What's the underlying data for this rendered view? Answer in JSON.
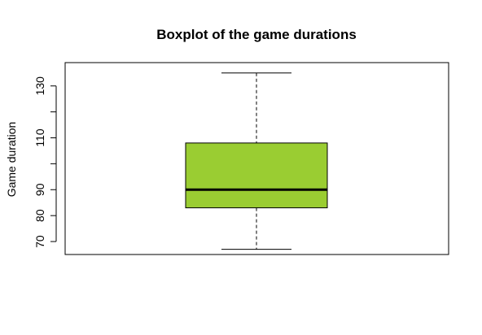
{
  "chart_data": {
    "type": "boxplot",
    "title": "Boxplot of the game durations",
    "xlabel": "",
    "ylabel": "Game duration",
    "ylim": [
      65,
      139
    ],
    "yticks": [
      {
        "value": 70,
        "label": "70"
      },
      {
        "value": 80,
        "label": "80"
      },
      {
        "value": 90,
        "label": "90"
      },
      {
        "value": 110,
        "label": "110"
      },
      {
        "value": 130,
        "label": "130"
      }
    ],
    "minor_yticks": [
      100,
      120
    ],
    "box": {
      "min": 67,
      "q1": 83,
      "median": 90,
      "q3": 108,
      "max": 135,
      "color": "#9ACD32"
    }
  }
}
